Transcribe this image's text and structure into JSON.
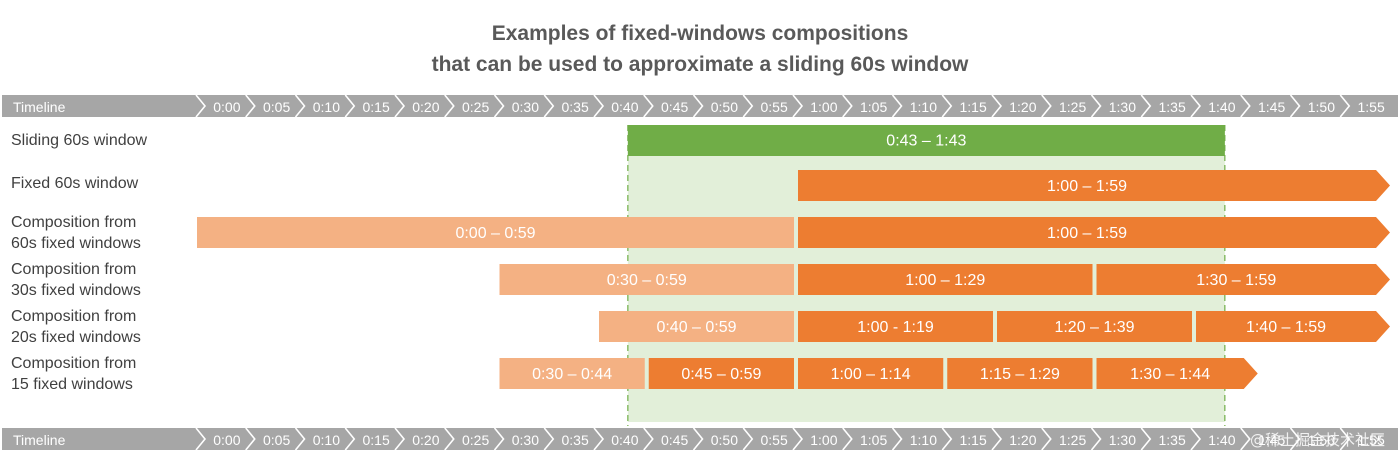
{
  "title": {
    "line1": "Examples of fixed-windows compositions",
    "line2": "that can be used to approximate a sliding 60s window"
  },
  "timeline": {
    "label": "Timeline",
    "ticks": [
      "0:00",
      "0:05",
      "0:10",
      "0:15",
      "0:20",
      "0:25",
      "0:30",
      "0:35",
      "0:40",
      "0:45",
      "0:50",
      "0:55",
      "1:00",
      "1:05",
      "1:10",
      "1:15",
      "1:20",
      "1:25",
      "1:30",
      "1:35",
      "1:40",
      "1:45",
      "1:50",
      "1:55"
    ]
  },
  "sliding": {
    "label": "Sliding 60s window",
    "segment": {
      "label": "0:43 – 1:43",
      "start": 43,
      "end": 103
    }
  },
  "rows": [
    {
      "label_lines": [
        "Fixed 60s window"
      ],
      "segments": [
        {
          "label": "1:00 – 1:59",
          "start": 60,
          "end": 120,
          "shade": "dark",
          "arrow": true
        }
      ]
    },
    {
      "label_lines": [
        "Composition from",
        "60s fixed windows"
      ],
      "segments": [
        {
          "label": "0:00 – 0:59",
          "start": 0,
          "end": 60,
          "shade": "light",
          "arrow": false
        },
        {
          "label": "1:00 – 1:59",
          "start": 60,
          "end": 120,
          "shade": "dark",
          "arrow": true
        }
      ]
    },
    {
      "label_lines": [
        "Composition from",
        "30s fixed windows"
      ],
      "segments": [
        {
          "label": "0:30 – 0:59",
          "start": 30,
          "end": 60,
          "shade": "light",
          "arrow": false
        },
        {
          "label": "1:00 – 1:29",
          "start": 60,
          "end": 90,
          "shade": "dark",
          "arrow": false
        },
        {
          "label": "1:30 – 1:59",
          "start": 90,
          "end": 120,
          "shade": "dark",
          "arrow": true
        }
      ]
    },
    {
      "label_lines": [
        "Composition from",
        "20s fixed windows"
      ],
      "segments": [
        {
          "label": "0:40 – 0:59",
          "start": 40,
          "end": 60,
          "shade": "light",
          "arrow": false
        },
        {
          "label": "1:00 - 1:19",
          "start": 60,
          "end": 80,
          "shade": "dark",
          "arrow": false
        },
        {
          "label": "1:20 – 1:39",
          "start": 80,
          "end": 100,
          "shade": "dark",
          "arrow": false
        },
        {
          "label": "1:40 – 1:59",
          "start": 100,
          "end": 120,
          "shade": "dark",
          "arrow": true
        }
      ]
    },
    {
      "label_lines": [
        "Composition from",
        "15 fixed windows"
      ],
      "segments": [
        {
          "label": "0:30 – 0:44",
          "start": 30,
          "end": 45,
          "shade": "light",
          "arrow": false
        },
        {
          "label": "0:45 – 0:59",
          "start": 45,
          "end": 60,
          "shade": "dark",
          "arrow": false
        },
        {
          "label": "1:00 – 1:14",
          "start": 60,
          "end": 75,
          "shade": "dark",
          "arrow": false
        },
        {
          "label": "1:15 – 1:29",
          "start": 75,
          "end": 90,
          "shade": "dark",
          "arrow": false
        },
        {
          "label": "1:30 – 1:44",
          "start": 90,
          "end": 105,
          "shade": "dark",
          "arrow": true
        }
      ]
    }
  ],
  "watermark": "@稀土掘金技术社区",
  "colors": {
    "timeline_bg": "#a6a6a6",
    "green": "#70ad47",
    "highlight": "#e2efd9",
    "dark_orange": "#ed7d31",
    "light_orange": "#f4b183",
    "text_dark": "#404040",
    "title": "#595959"
  }
}
